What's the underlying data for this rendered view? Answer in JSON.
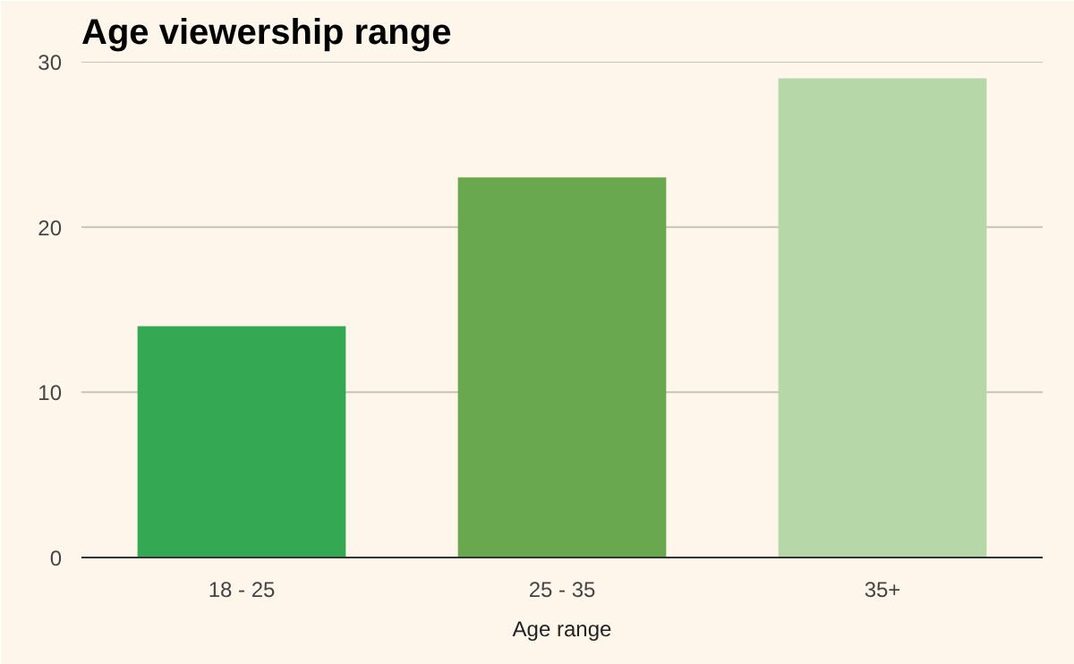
{
  "chart_data": {
    "type": "bar",
    "title": "Age viewership range",
    "xlabel": "Age range",
    "categories": [
      "18 - 25",
      "25 - 35",
      "35+"
    ],
    "values": [
      14,
      23,
      29
    ],
    "colors": [
      "#34a853",
      "#6aa84f",
      "#b6d7a8"
    ],
    "ylim": [
      0,
      30
    ],
    "yticks": [
      0,
      10,
      20,
      30
    ],
    "grid": "y"
  }
}
